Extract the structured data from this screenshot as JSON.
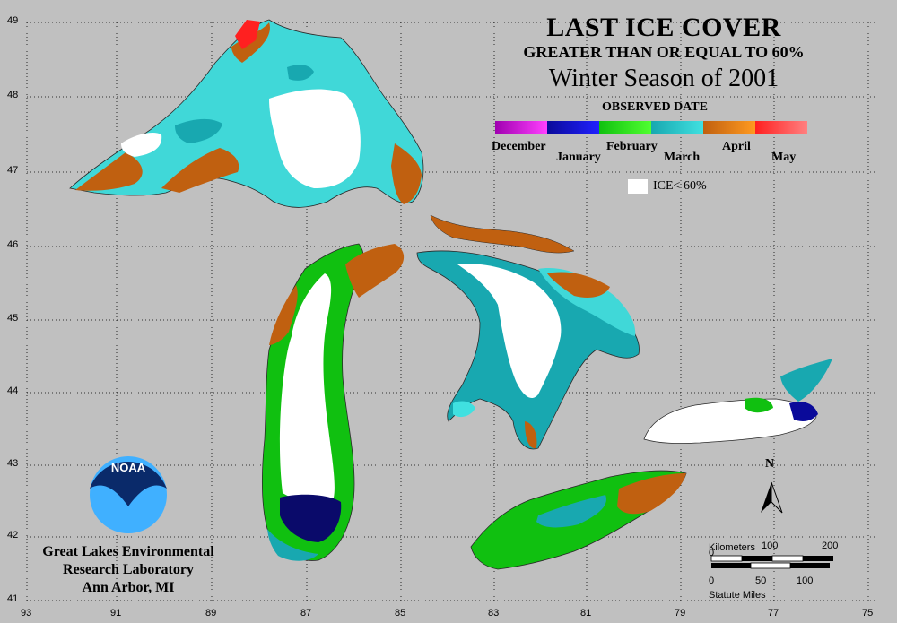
{
  "title": "LAST ICE COVER",
  "subtitle": "GREATER THAN OR EQUAL TO 60%",
  "season": "Winter Season of 2001",
  "legend": {
    "heading": "OBSERVED DATE",
    "months": [
      "December",
      "January",
      "February",
      "March",
      "April",
      "May"
    ],
    "colors": [
      "#a000b0",
      "#0a0a9a",
      "#10c010",
      "#18a8b0",
      "#c06010",
      "#ff2020"
    ],
    "colors_light": [
      "#ff40ff",
      "#2020ff",
      "#50ff30",
      "#40e0e0",
      "#ff9a20",
      "#ff8080"
    ],
    "ice_label": "ICE< 60%"
  },
  "axes": {
    "lat": [
      "49",
      "48",
      "47",
      "46",
      "45",
      "44",
      "43",
      "42",
      "41"
    ],
    "lon": [
      "93",
      "91",
      "89",
      "87",
      "85",
      "83",
      "81",
      "79",
      "77",
      "75"
    ]
  },
  "organization": {
    "line1": "Great Lakes Environmental",
    "line2": "Research Laboratory",
    "line3": "Ann Arbor, MI",
    "logo_text": "NOAA"
  },
  "north_label": "N",
  "scale": {
    "km_label": "Kilometers",
    "km_ticks": [
      "0",
      "100",
      "200"
    ],
    "mi_ticks": [
      "0",
      "50",
      "100"
    ],
    "mi_label": "Statute Miles"
  }
}
